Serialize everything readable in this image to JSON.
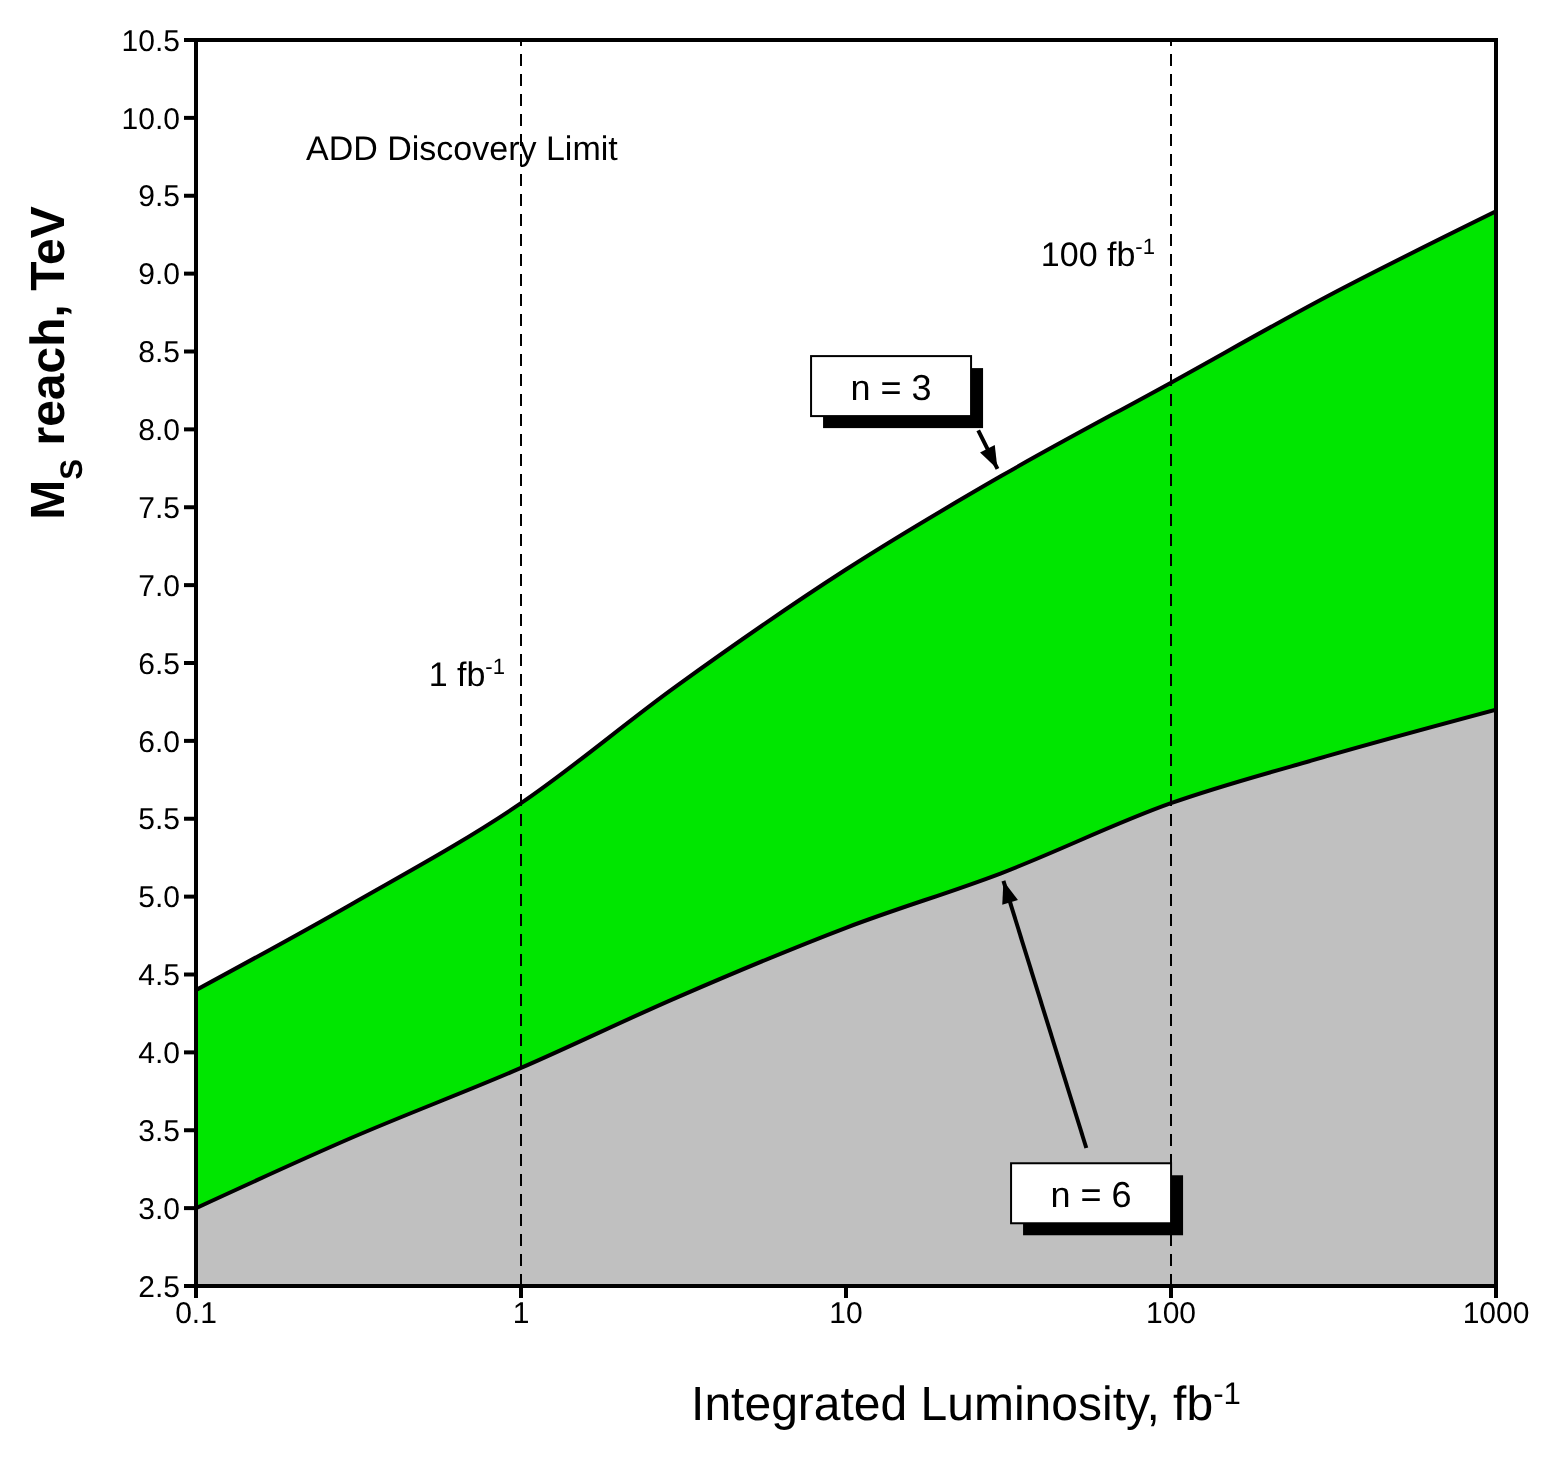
{
  "chart_data": {
    "type": "area",
    "xlabel": "Integrated Luminosity, fb$^{-1}$",
    "ylabel": "M$_{S}$ reach, TeV",
    "annotations": [
      "ADD Discovery Limit"
    ],
    "x": [
      0.1,
      0.3,
      1,
      3,
      10,
      30,
      100,
      300,
      1000
    ],
    "series": [
      {
        "name": "n = 3",
        "color": "#00e600",
        "values": [
          4.4,
          4.95,
          5.6,
          6.35,
          7.1,
          7.7,
          8.3,
          8.85,
          9.4
        ]
      },
      {
        "name": "n = 6",
        "color": "#c0c0c0",
        "values": [
          3.0,
          3.45,
          3.9,
          4.35,
          4.8,
          5.15,
          5.6,
          5.9,
          6.2
        ]
      }
    ],
    "log": "x",
    "xlim": [
      0.1,
      1000
    ],
    "xticks": [
      0.1,
      1,
      10,
      100,
      1000
    ],
    "ylim": [
      2.5,
      10.5
    ],
    "yticks": [
      2.5,
      {
        "value": 3,
        "label": "3.0"
      },
      3.5,
      {
        "value": 4,
        "label": "4.0"
      },
      4.5,
      {
        "value": 5,
        "label": "5.0"
      },
      5.5,
      {
        "value": 6,
        "label": "6.0"
      },
      6.5,
      {
        "value": 7,
        "label": "7.0"
      },
      7.5,
      {
        "value": 8,
        "label": "8.0"
      },
      8.5,
      {
        "value": 9,
        "label": "9.0"
      },
      9.5,
      {
        "value": 10,
        "label": "10.0"
      },
      10.5
    ],
    "ref_lines": [
      {
        "axis": "x",
        "value": 1,
        "label": "1 fb$^{-1}$",
        "line_style": "dashed",
        "color": "#000000"
      },
      {
        "axis": "x",
        "value": 100,
        "label": "100 fb$^{-1}$",
        "line_style": "dashed",
        "color": "#000000"
      }
    ],
    "tick_labels": "xy"
  }
}
